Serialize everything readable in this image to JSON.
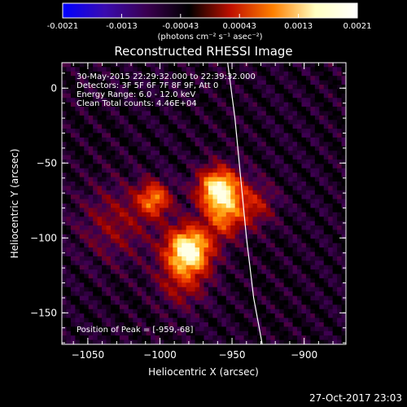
{
  "colorbar": {
    "tick_labels": [
      "-0.0021",
      "-0.0013",
      "-0.00043",
      "0.00043",
      "0.0013",
      "0.0021"
    ],
    "unit_label": "(photons cm⁻² s⁻¹ asec⁻²)",
    "colors": [
      "#0000ff",
      "#3a0cb0",
      "#3a0050",
      "#000000",
      "#c01000",
      "#ff8000",
      "#ffffc0",
      "#ffffff"
    ]
  },
  "chart_data": {
    "type": "heatmap",
    "title": "Reconstructed RHESSI Image",
    "xlabel": "Heliocentric X (arcsec)",
    "ylabel": "Heliocentric Y (arcsec)",
    "xlim": [
      -1068,
      -871
    ],
    "ylim": [
      -171,
      17
    ],
    "x_ticks": [
      -1050,
      -1000,
      -950,
      -900
    ],
    "y_ticks": [
      0,
      -50,
      -100,
      -150
    ],
    "x_tick_labels": [
      "−1050",
      "−1000",
      "−950",
      "−900"
    ],
    "y_tick_labels": [
      "0",
      "−50",
      "−100",
      "−150"
    ],
    "annotation_lines": [
      "30-May-2015 22:29:32.000 to 22:39:32.000",
      "Detectors: 3F 5F 6F 7F 8F 9F, Att 0",
      "Energy Range: 6.0 - 12.0 keV",
      "Clean    Total counts: 4.46E+04"
    ],
    "peak_label": "Position of Peak = [-959,-68]",
    "peak": [
      -959,
      -68
    ],
    "sources": [
      {
        "x": -959,
        "y": -68,
        "amp": 1.0,
        "sigma": 10
      },
      {
        "x": -980,
        "y": -108,
        "amp": 1.0,
        "sigma": 11
      },
      {
        "x": -1004,
        "y": -74,
        "amp": 0.6,
        "sigma": 8
      },
      {
        "x": -955,
        "y": -88,
        "amp": 0.45,
        "sigma": 9
      },
      {
        "x": -935,
        "y": -78,
        "amp": 0.35,
        "sigma": 10
      },
      {
        "x": -985,
        "y": -130,
        "amp": 0.3,
        "sigma": 12
      },
      {
        "x": -1030,
        "y": -90,
        "amp": 0.25,
        "sigma": 18
      }
    ],
    "limb_curve": [
      [
        -953,
        17
      ],
      [
        -948,
        -20
      ],
      [
        -944,
        -60
      ],
      [
        -940,
        -100
      ],
      [
        -935,
        -140
      ],
      [
        -929,
        -171
      ]
    ]
  },
  "footer": {
    "timestamp": "27-Oct-2017 23:03"
  }
}
